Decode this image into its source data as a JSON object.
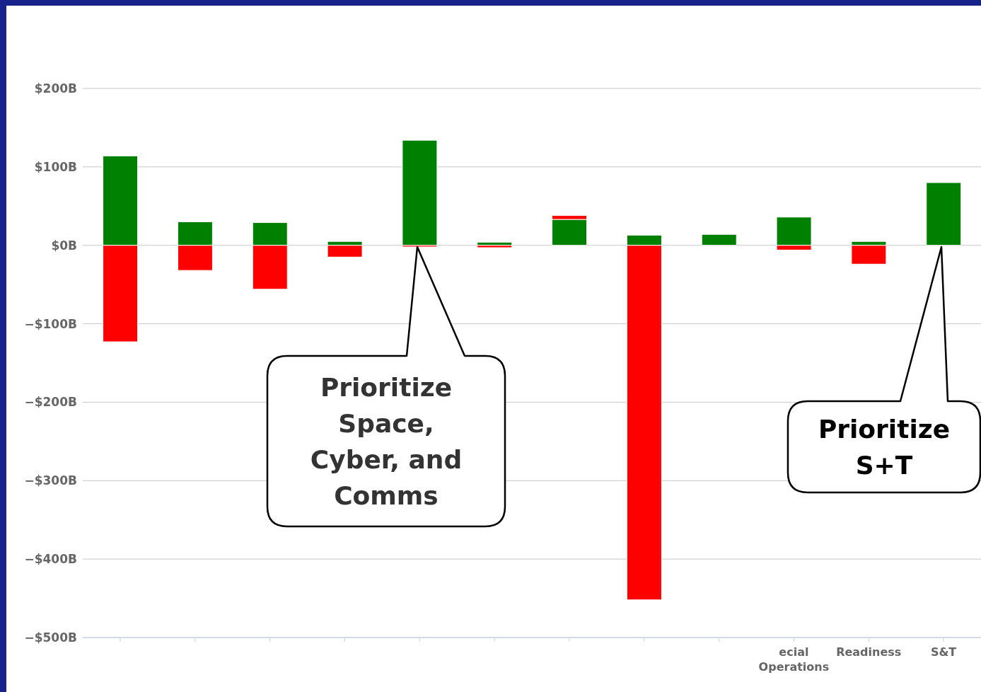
{
  "chart_data": {
    "type": "bar",
    "stacked": true,
    "categories": [
      null,
      null,
      null,
      null,
      null,
      null,
      null,
      null,
      null,
      "ecial Operations",
      "Readiness",
      "S&T"
    ],
    "series": [
      {
        "color": "#008000",
        "values": [
          114,
          30,
          29,
          5,
          134,
          4,
          33,
          13,
          14,
          36,
          5,
          80
        ]
      },
      {
        "color": "#ff0000",
        "values": [
          -123,
          -32,
          -56,
          -15,
          -2,
          -3,
          5,
          -452,
          null,
          -6,
          -24,
          null
        ]
      }
    ],
    "ylim": [
      -500,
      200
    ],
    "yticks": [
      {
        "value": -500,
        "label": "−$500B"
      },
      {
        "value": -400,
        "label": "−$400B"
      },
      {
        "value": -300,
        "label": "−$300B"
      },
      {
        "value": -200,
        "label": "−$200B"
      },
      {
        "value": -100,
        "label": "−$100B"
      },
      {
        "value": 0,
        "label": "$0B"
      },
      {
        "value": 100,
        "label": "$100B"
      },
      {
        "value": 200,
        "label": "$200B"
      }
    ],
    "grid": "y",
    "annotations": [
      "Prioritize Space, Cyber, and Comms",
      "Prioritize S+T"
    ]
  }
}
